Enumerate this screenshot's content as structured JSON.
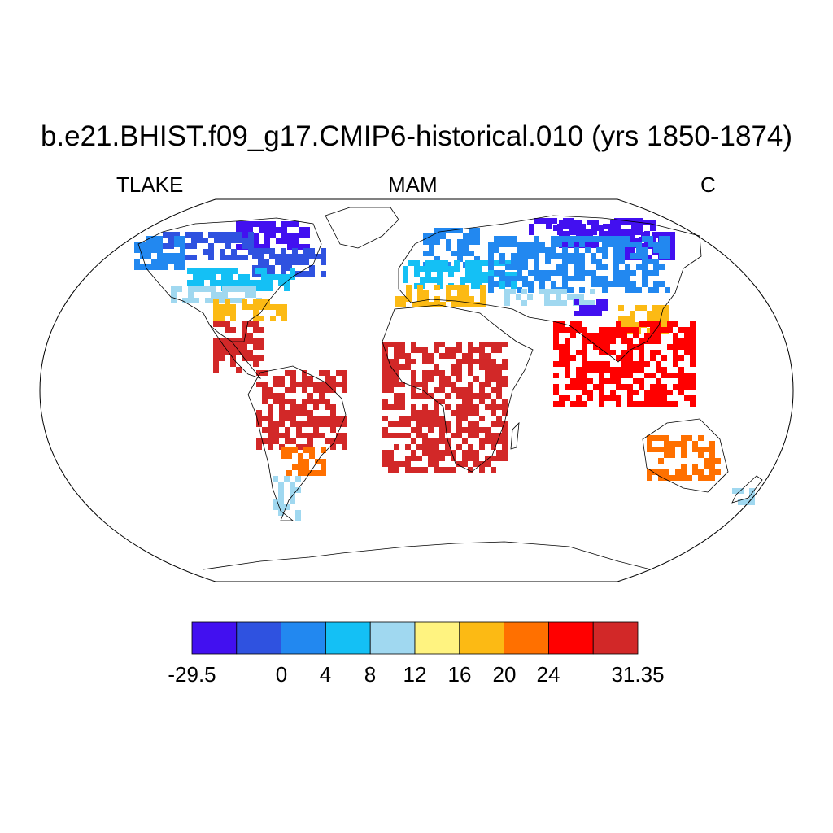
{
  "title": "b.e21.BHIST.f09_g17.CMIP6-historical.010 (yrs 1850-1874)",
  "subtitle_left": "TLAKE",
  "subtitle_center": "MAM",
  "subtitle_right": "C",
  "colorbar": {
    "colors": [
      "#4210f0",
      "#2f52e0",
      "#2288f0",
      "#14c0f5",
      "#a0d8f0",
      "#fff380",
      "#fcba14",
      "#ff7000",
      "#ff0000",
      "#d22828"
    ],
    "labels": [
      "-29.5",
      "0",
      "4",
      "8",
      "12",
      "16",
      "20",
      "24",
      "31.35"
    ]
  },
  "regions": [
    {
      "name": "canada-arctic",
      "color": "#4210f0"
    },
    {
      "name": "canada-south",
      "color": "#2f52e0"
    },
    {
      "name": "alaska",
      "color": "#2288f0"
    },
    {
      "name": "northern-us",
      "color": "#14c0f5"
    },
    {
      "name": "central-us",
      "color": "#a0d8f0"
    },
    {
      "name": "southern-us",
      "color": "#fcba14"
    },
    {
      "name": "mexico-caribbean",
      "color": "#d22828"
    },
    {
      "name": "south-america-tropics",
      "color": "#d22828"
    },
    {
      "name": "south-america-south",
      "color": "#ff7000"
    },
    {
      "name": "patagonia",
      "color": "#a0d8f0"
    },
    {
      "name": "scandinavia",
      "color": "#2288f0"
    },
    {
      "name": "europe",
      "color": "#14c0f5"
    },
    {
      "name": "mediterranean",
      "color": "#fcba14"
    },
    {
      "name": "siberia",
      "color": "#4210f0"
    },
    {
      "name": "russia-central",
      "color": "#2288f0"
    },
    {
      "name": "central-asia",
      "color": "#a0d8f0"
    },
    {
      "name": "tibet",
      "color": "#4210f0"
    },
    {
      "name": "china-east",
      "color": "#fcba14"
    },
    {
      "name": "india-se-asia",
      "color": "#ff0000"
    },
    {
      "name": "africa-tropics",
      "color": "#d22828"
    },
    {
      "name": "australia",
      "color": "#ff7000"
    },
    {
      "name": "new-zealand",
      "color": "#a0d8f0"
    }
  ]
}
